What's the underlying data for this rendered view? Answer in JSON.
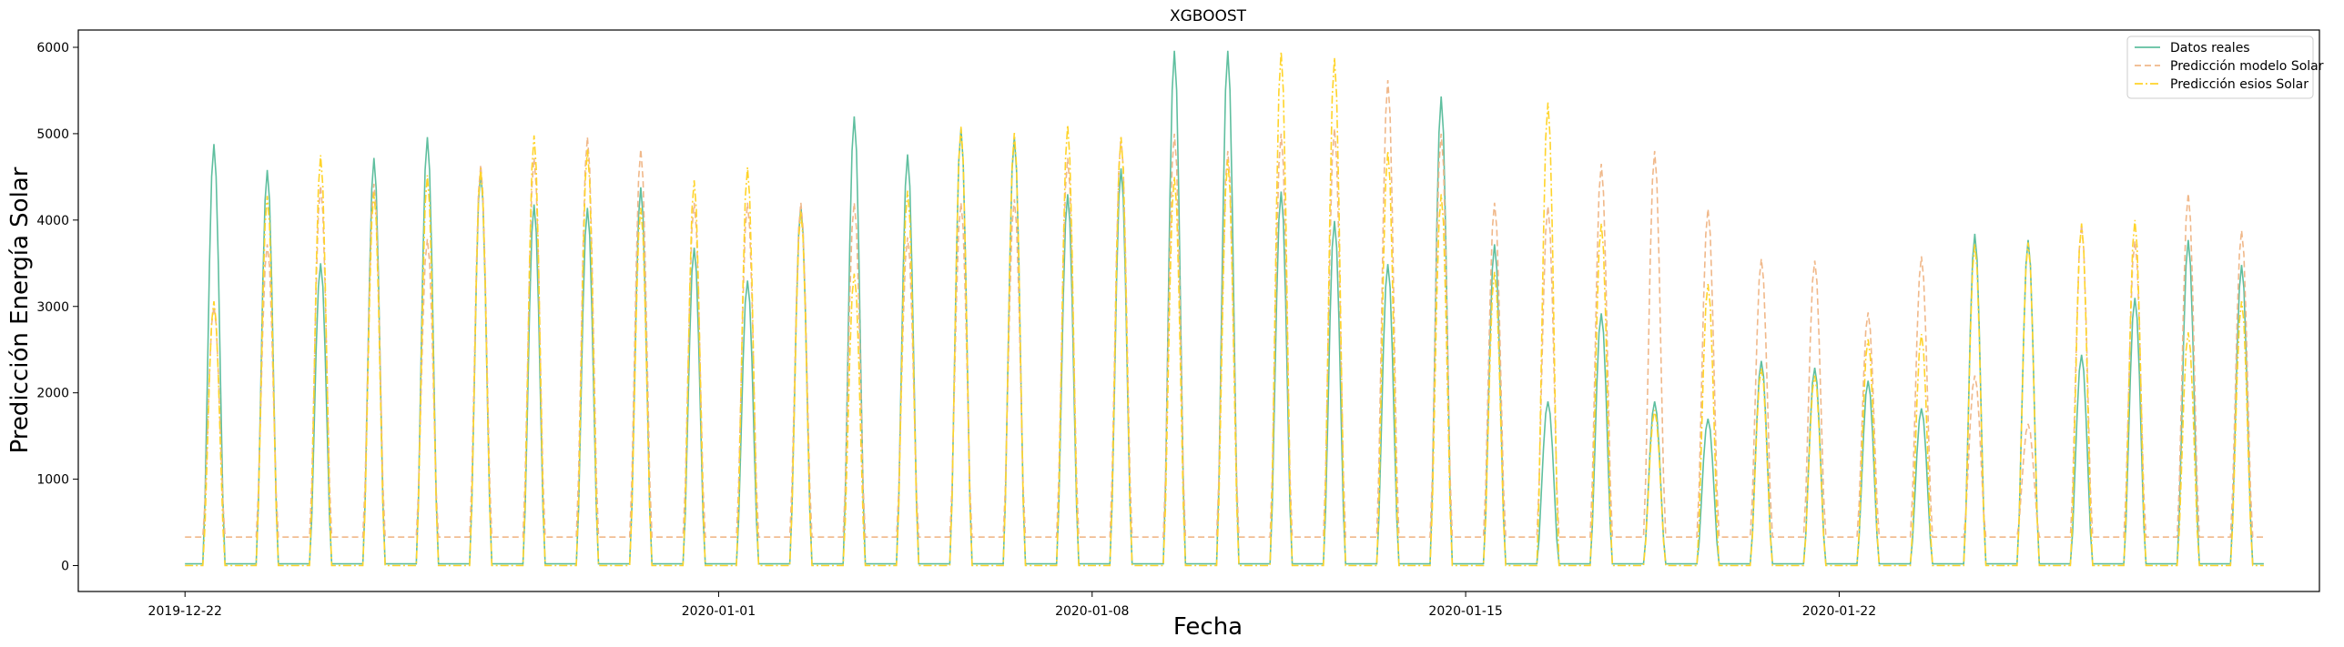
{
  "chart_data": {
    "type": "line",
    "title": "XGBOOST",
    "xlabel": "Fecha",
    "ylabel": "Predicción Energía Solar",
    "x_start": "2019-12-22",
    "x_end": "2020-01-27",
    "xlim": [
      "2019-12-20",
      "2020-01-31"
    ],
    "ylim": [
      -300,
      6200
    ],
    "x_ticks": [
      "2019-12-22",
      "2020-01-01",
      "2020-01-08",
      "2020-01-15",
      "2020-01-22"
    ],
    "y_ticks": [
      0,
      1000,
      2000,
      3000,
      4000,
      5000,
      6000
    ],
    "grid": false,
    "legend": "top-right",
    "series": [
      {
        "name": "Datos reales",
        "color": "#5fbf9f",
        "style": "solid",
        "baseline": 20,
        "daily_peaks": [
          4880,
          4580,
          3500,
          4720,
          4960,
          4560,
          4180,
          4140,
          4380,
          3680,
          3300,
          4160,
          5200,
          4760,
          5060,
          4960,
          4300,
          4600,
          5960,
          5960,
          4330,
          3990,
          3490,
          5430,
          3720,
          1900,
          2920,
          1900,
          1700,
          2370,
          2290,
          2140,
          1820,
          3840,
          3770,
          2440,
          3100,
          3770,
          3480
        ]
      },
      {
        "name": "Predicción modelo Solar",
        "color": "#f0b88a",
        "style": "dashed",
        "baseline": 330,
        "daily_peaks": [
          3000,
          3720,
          4400,
          4420,
          3780,
          4640,
          4720,
          4960,
          4820,
          4200,
          4200,
          4200,
          4200,
          3800,
          4200,
          4240,
          4720,
          4960,
          5000,
          4800,
          5000,
          5060,
          5620,
          5000,
          4200,
          4160,
          4650,
          4800,
          4130,
          3550,
          3530,
          2930,
          3580,
          2200,
          1640,
          3940,
          3760,
          4310,
          3880
        ]
      },
      {
        "name": "Predicción esios Solar",
        "color": "#ffd42a",
        "style": "dashdot",
        "baseline": 0,
        "daily_peaks": [
          3060,
          4280,
          4750,
          4320,
          4520,
          4600,
          4980,
          4820,
          4140,
          4460,
          4610,
          4100,
          3380,
          4340,
          5080,
          5010,
          5100,
          4960,
          4500,
          4700,
          5950,
          5880,
          4800,
          4300,
          3400,
          5360,
          3960,
          1800,
          3260,
          2280,
          2200,
          2620,
          2680,
          3720,
          3740,
          3960,
          4000,
          2700,
          3060
        ]
      }
    ]
  }
}
